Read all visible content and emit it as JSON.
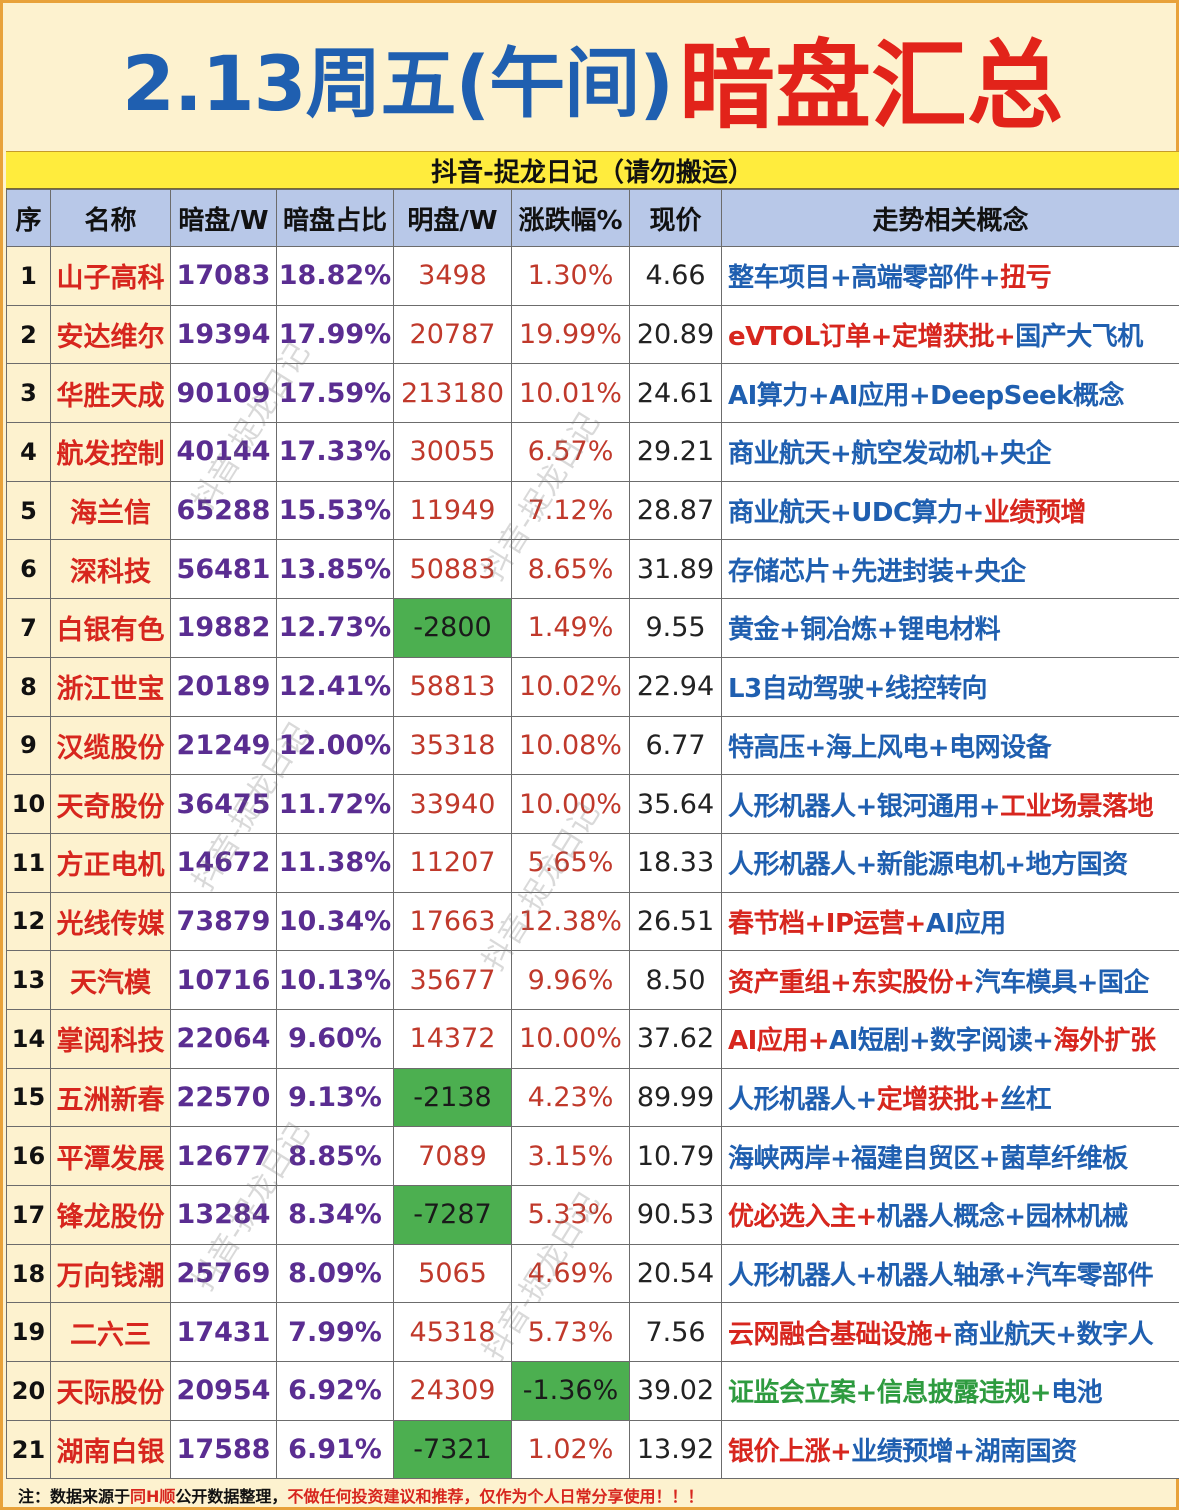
{
  "title": {
    "part1": "2.13周五(午间)",
    "part2": "暗盘汇总"
  },
  "subtitle": "抖音-捉龙日记（请勿搬运）",
  "headers": [
    "序",
    "名称",
    "暗盘/W",
    "暗盘占比",
    "明盘/W",
    "涨跌幅%",
    "现价",
    "走势相关概念"
  ],
  "rows": [
    {
      "seq": "1",
      "name": "山子高科",
      "dark": "17083",
      "ratio": "18.82%",
      "ming": "3498",
      "pct": "1.30%",
      "price": "4.66",
      "concept": [
        [
          "b",
          "整车项目+高端零部件+"
        ],
        [
          "r",
          "扭亏"
        ]
      ]
    },
    {
      "seq": "2",
      "name": "安达维尔",
      "dark": "19394",
      "ratio": "17.99%",
      "ming": "20787",
      "pct": "19.99%",
      "price": "20.89",
      "concept": [
        [
          "r",
          "eVTOL订单+定增获批+"
        ],
        [
          "b",
          "国产大飞机"
        ]
      ]
    },
    {
      "seq": "3",
      "name": "华胜天成",
      "dark": "90109",
      "ratio": "17.59%",
      "ming": "213180",
      "pct": "10.01%",
      "price": "24.61",
      "concept": [
        [
          "b",
          "AI算力+AI应用+DeepSeek概念"
        ]
      ]
    },
    {
      "seq": "4",
      "name": "航发控制",
      "dark": "40144",
      "ratio": "17.33%",
      "ming": "30055",
      "pct": "6.57%",
      "price": "29.21",
      "concept": [
        [
          "b",
          "商业航天+航空发动机+央企"
        ]
      ]
    },
    {
      "seq": "5",
      "name": "海兰信",
      "dark": "65288",
      "ratio": "15.53%",
      "ming": "11949",
      "pct": "7.12%",
      "price": "28.87",
      "concept": [
        [
          "b",
          "商业航天+UDC算力+"
        ],
        [
          "r",
          "业绩预增"
        ]
      ]
    },
    {
      "seq": "6",
      "name": "深科技",
      "dark": "56481",
      "ratio": "13.85%",
      "ming": "50883",
      "pct": "8.65%",
      "price": "31.89",
      "concept": [
        [
          "b",
          "存储芯片+先进封装+央企"
        ]
      ]
    },
    {
      "seq": "7",
      "name": "白银有色",
      "dark": "19882",
      "ratio": "12.73%",
      "ming": "-2800",
      "pct": "1.49%",
      "price": "9.55",
      "ming_green": true,
      "concept": [
        [
          "b",
          "黄金+铜冶炼+锂电材料"
        ]
      ]
    },
    {
      "seq": "8",
      "name": "浙江世宝",
      "dark": "20189",
      "ratio": "12.41%",
      "ming": "58813",
      "pct": "10.02%",
      "price": "22.94",
      "concept": [
        [
          "b",
          "L3自动驾驶+线控转向"
        ]
      ]
    },
    {
      "seq": "9",
      "name": "汉缆股份",
      "dark": "21249",
      "ratio": "12.00%",
      "ming": "35318",
      "pct": "10.08%",
      "price": "6.77",
      "concept": [
        [
          "b",
          "特高压+海上风电+电网设备"
        ]
      ]
    },
    {
      "seq": "10",
      "name": "天奇股份",
      "dark": "36475",
      "ratio": "11.72%",
      "ming": "33940",
      "pct": "10.00%",
      "price": "35.64",
      "concept": [
        [
          "b",
          "人形机器人+银河通用+"
        ],
        [
          "r",
          "工业场景落地"
        ]
      ]
    },
    {
      "seq": "11",
      "name": "方正电机",
      "dark": "14672",
      "ratio": "11.38%",
      "ming": "11207",
      "pct": "5.65%",
      "price": "18.33",
      "concept": [
        [
          "b",
          "人形机器人+新能源电机+地方国资"
        ]
      ]
    },
    {
      "seq": "12",
      "name": "光线传媒",
      "dark": "73879",
      "ratio": "10.34%",
      "ming": "17663",
      "pct": "12.38%",
      "price": "26.51",
      "concept": [
        [
          "r",
          "春节档+IP运营+"
        ],
        [
          "b",
          "AI应用"
        ]
      ]
    },
    {
      "seq": "13",
      "name": "天汽模",
      "dark": "10716",
      "ratio": "10.13%",
      "ming": "35677",
      "pct": "9.96%",
      "price": "8.50",
      "concept": [
        [
          "r",
          "资产重组+东实股份+"
        ],
        [
          "b",
          "汽车模具+国企"
        ]
      ]
    },
    {
      "seq": "14",
      "name": "掌阅科技",
      "dark": "22064",
      "ratio": "9.60%",
      "ming": "14372",
      "pct": "10.00%",
      "price": "37.62",
      "concept": [
        [
          "r",
          "AI应用+"
        ],
        [
          "b",
          "AI短剧+数字阅读+"
        ],
        [
          "r",
          "海外扩张"
        ]
      ]
    },
    {
      "seq": "15",
      "name": "五洲新春",
      "dark": "22570",
      "ratio": "9.13%",
      "ming": "-2138",
      "pct": "4.23%",
      "price": "89.99",
      "ming_green": true,
      "concept": [
        [
          "b",
          "人形机器人+"
        ],
        [
          "r",
          "定增获批+"
        ],
        [
          "b",
          "丝杠"
        ]
      ]
    },
    {
      "seq": "16",
      "name": "平潭发展",
      "dark": "12677",
      "ratio": "8.85%",
      "ming": "7089",
      "pct": "3.15%",
      "price": "10.79",
      "concept": [
        [
          "b",
          "海峡两岸+福建自贸区+菌草纤维板"
        ]
      ]
    },
    {
      "seq": "17",
      "name": "锋龙股份",
      "dark": "13284",
      "ratio": "8.34%",
      "ming": "-7287",
      "pct": "5.33%",
      "price": "90.53",
      "ming_green": true,
      "concept": [
        [
          "r",
          "优必选入主+"
        ],
        [
          "b",
          "机器人概念+园林机械"
        ]
      ]
    },
    {
      "seq": "18",
      "name": "万向钱潮",
      "dark": "25769",
      "ratio": "8.09%",
      "ming": "5065",
      "pct": "4.69%",
      "price": "20.54",
      "concept": [
        [
          "b",
          "人形机器人+机器人轴承+汽车零部件"
        ]
      ]
    },
    {
      "seq": "19",
      "name": "二六三",
      "dark": "17431",
      "ratio": "7.99%",
      "ming": "45318",
      "pct": "5.73%",
      "price": "7.56",
      "concept": [
        [
          "r",
          "云网融合基础设施+"
        ],
        [
          "b",
          "商业航天+数字人"
        ]
      ]
    },
    {
      "seq": "20",
      "name": "天际股份",
      "dark": "20954",
      "ratio": "6.92%",
      "ming": "24309",
      "pct": "-1.36%",
      "price": "39.02",
      "pct_green": true,
      "concept": [
        [
          "g",
          "证监会立案+信息披露违规+"
        ],
        [
          "b",
          "电池"
        ]
      ]
    },
    {
      "seq": "21",
      "name": "湖南白银",
      "dark": "17588",
      "ratio": "6.91%",
      "ming": "-7321",
      "pct": "1.02%",
      "price": "13.92",
      "ming_green": true,
      "concept": [
        [
          "r",
          "银价上涨+"
        ],
        [
          "b",
          "业绩预增+湖南国资"
        ]
      ]
    }
  ],
  "footer": {
    "p1": "注：数据来源于",
    "p2": "同H顺",
    "p3": "公开数据整理，",
    "p4": "不做任何投资建议和推荐，仅作为个人日常分享使用！！！"
  },
  "watermark": "抖音-捉龙日记",
  "colors": {
    "blue_title": "#1f5fb0",
    "red_title": "#e2231a",
    "header_bg": "#b8c8e8",
    "subtitle_bg": "#ffec3d",
    "negative_cell": "#4caf50"
  }
}
